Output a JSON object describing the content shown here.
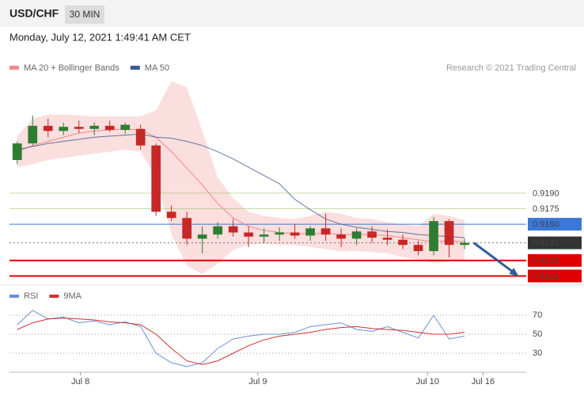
{
  "header": {
    "symbol": "USD/CHF",
    "timeframe": "30 MIN",
    "timestamp": "Monday, July 12, 2021 1:49:41 AM CET",
    "credit": "Research © 2021 Trading Central"
  },
  "chart_data": {
    "type": "candlestick",
    "open": [
      0.9222,
      0.9238,
      0.9255,
      0.925,
      0.9254,
      0.9252,
      0.9255,
      0.9251,
      0.9252,
      0.9236,
      0.9172,
      0.9166,
      0.9146,
      0.915,
      0.9158,
      0.9152,
      0.9148,
      0.915,
      0.9152,
      0.9149,
      0.9156,
      0.915,
      0.9146,
      0.9153,
      0.9147,
      0.9145,
      0.914,
      0.9134,
      0.9163,
      0.914
    ],
    "high": [
      0.924,
      0.9265,
      0.9262,
      0.9258,
      0.926,
      0.9258,
      0.926,
      0.9258,
      0.9256,
      0.9238,
      0.9178,
      0.9172,
      0.9158,
      0.9162,
      0.9165,
      0.9158,
      0.9156,
      0.9157,
      0.916,
      0.9158,
      0.917,
      0.9156,
      0.9156,
      0.9158,
      0.9155,
      0.915,
      0.9144,
      0.9167,
      0.9165,
      0.9146
    ],
    "low": [
      0.9218,
      0.9236,
      0.9244,
      0.9246,
      0.9248,
      0.9246,
      0.9249,
      0.9247,
      0.9232,
      0.9168,
      0.9163,
      0.914,
      0.9132,
      0.9146,
      0.9148,
      0.9138,
      0.9142,
      0.9144,
      0.9146,
      0.9144,
      0.9144,
      0.9138,
      0.914,
      0.9142,
      0.914,
      0.9136,
      0.913,
      0.913,
      0.9128,
      0.9136
    ],
    "close": [
      0.9238,
      0.9255,
      0.925,
      0.9254,
      0.9252,
      0.9255,
      0.9251,
      0.9256,
      0.9236,
      0.9172,
      0.9166,
      0.9146,
      0.915,
      0.9158,
      0.9152,
      0.9148,
      0.915,
      0.9152,
      0.9149,
      0.9156,
      0.915,
      0.9146,
      0.9153,
      0.9147,
      0.9145,
      0.914,
      0.9134,
      0.9163,
      0.914,
      0.9142
    ],
    "up_color": "#2e7d32",
    "down_color": "#c62828",
    "overlays": [
      {
        "name": "MA 20 + Bollinger Bands",
        "color": "#f08a8a",
        "values": [
          0.923,
          0.9236,
          0.924,
          0.9244,
          0.9248,
          0.925,
          0.9251,
          0.9252,
          0.9251,
          0.9244,
          0.923,
          0.9214,
          0.9198,
          0.918,
          0.9166,
          0.9158,
          0.9154,
          0.9152,
          0.9151,
          0.9151,
          0.9151,
          0.915,
          0.915,
          0.915,
          0.9149,
          0.9147,
          0.9145,
          0.9143,
          0.9144,
          0.9143
        ],
        "upper": [
          0.9245,
          0.9262,
          0.9266,
          0.9266,
          0.9265,
          0.9264,
          0.9264,
          0.9264,
          0.9264,
          0.927,
          0.9298,
          0.9292,
          0.925,
          0.9205,
          0.9185,
          0.9172,
          0.9168,
          0.9166,
          0.9165,
          0.9168,
          0.9172,
          0.917,
          0.9166,
          0.9165,
          0.9162,
          0.916,
          0.9158,
          0.917,
          0.9168,
          0.9164
        ],
        "lower": [
          0.9215,
          0.9218,
          0.9222,
          0.9224,
          0.9226,
          0.9228,
          0.923,
          0.9232,
          0.923,
          0.9205,
          0.915,
          0.912,
          0.9112,
          0.9122,
          0.9135,
          0.914,
          0.9141,
          0.914,
          0.914,
          0.9138,
          0.9136,
          0.9134,
          0.9134,
          0.9133,
          0.9132,
          0.9128,
          0.9126,
          0.9122,
          0.9124,
          0.9126
        ]
      },
      {
        "name": "MA 50",
        "color": "#3b5a8c",
        "values": [
          0.9232,
          0.9235,
          0.9238,
          0.924,
          0.9242,
          0.9244,
          0.9245,
          0.9246,
          0.9247,
          0.9244,
          0.9243,
          0.924,
          0.9236,
          0.923,
          0.9223,
          0.9215,
          0.9207,
          0.9199,
          0.9184,
          0.9174,
          0.9165,
          0.916,
          0.9157,
          0.9155,
          0.9153,
          0.9152,
          0.915,
          0.9149,
          0.9148,
          0.9147
        ]
      }
    ],
    "xlim": [
      -0.5,
      33
    ],
    "xticks": [
      {
        "value": 4.1,
        "label": "Jul 8"
      },
      {
        "value": 15.6,
        "label": "Jul 9"
      },
      {
        "value": 26.6,
        "label": "Jul 10"
      },
      {
        "value": 30.2,
        "label": "Jul 16"
      }
    ],
    "ylim": [
      0.9105,
      0.93
    ],
    "levels": [
      {
        "value": 0.919,
        "label": "0.9190",
        "color": "#9cc46e",
        "boxed": false
      },
      {
        "value": 0.9175,
        "label": "0.9175",
        "color": "#9cc46e",
        "boxed": false
      },
      {
        "value": 0.916,
        "label": "0.9160",
        "color": "#3a78d8",
        "boxed": true
      },
      {
        "value": 0.9142,
        "label": "0.9142",
        "color": "#333333",
        "boxed": true,
        "dotted": true
      },
      {
        "value": 0.9125,
        "label": "0.9125",
        "color": "#e00000",
        "boxed": true
      },
      {
        "value": 0.911,
        "label": "0.9110",
        "color": "#e00000",
        "boxed": true
      }
    ],
    "forecast": {
      "x": [
        29.6,
        32.4
      ],
      "values": [
        0.9142,
        0.9111
      ],
      "color": "#2f5f99"
    },
    "rsi": {
      "ylim": [
        10,
        95
      ],
      "yticks": [
        30,
        50,
        70
      ],
      "series": [
        {
          "name": "RSI",
          "color": "#6a8fd8",
          "values": [
            60,
            75,
            66,
            68,
            62,
            64,
            60,
            63,
            58,
            30,
            20,
            16,
            20,
            35,
            45,
            48,
            50,
            50,
            52,
            58,
            60,
            62,
            55,
            53,
            58,
            52,
            46,
            70,
            45,
            48
          ]
        },
        {
          "name": "9MA",
          "color": "#d32f2f",
          "values": [
            55,
            62,
            66,
            67,
            66,
            65,
            63,
            62,
            60,
            50,
            35,
            22,
            18,
            22,
            30,
            38,
            44,
            48,
            50,
            52,
            55,
            57,
            58,
            56,
            55,
            54,
            52,
            50,
            50,
            52
          ]
        }
      ]
    }
  }
}
